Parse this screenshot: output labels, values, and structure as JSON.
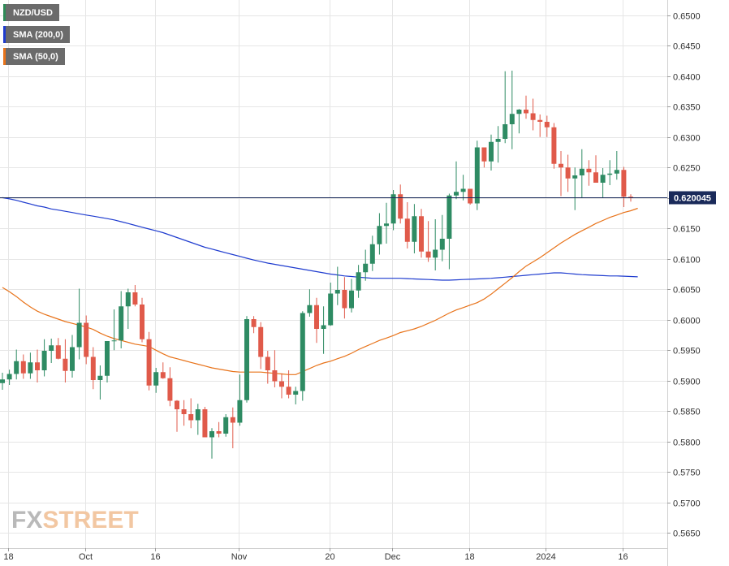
{
  "chart_data": {
    "type": "candlestick",
    "symbol": "NZD/USD",
    "legend": [
      {
        "label": "NZD/USD",
        "color": "#2e8b57"
      },
      {
        "label": "SMA (200,0)",
        "color": "#1f3ccf"
      },
      {
        "label": "SMA (50,0)",
        "color": "#e8731a"
      }
    ],
    "current_price": "0.620045",
    "current_price_value": 0.62005,
    "y_ticks": [
      "0.6500",
      "0.6450",
      "0.6400",
      "0.6350",
      "0.6300",
      "0.6250",
      "0.6200",
      "0.6150",
      "0.6100",
      "0.6050",
      "0.6000",
      "0.5950",
      "0.5900",
      "0.5850",
      "0.5800",
      "0.5750",
      "0.5700",
      "0.5650"
    ],
    "ylim": [
      0.5625,
      0.6525
    ],
    "x_tick_labels": [
      {
        "label": "18",
        "index": 0
      },
      {
        "label": "Oct",
        "index": 11
      },
      {
        "label": "16",
        "index": 21
      },
      {
        "label": "Nov",
        "index": 33
      },
      {
        "label": "20",
        "index": 46
      },
      {
        "label": "Dec",
        "index": 55
      },
      {
        "label": "18",
        "index": 66
      },
      {
        "label": "2024",
        "index": 77
      },
      {
        "label": "16",
        "index": 88
      }
    ],
    "candles": [
      [
        0.5896,
        0.5913,
        0.5885,
        0.5902
      ],
      [
        0.5902,
        0.5918,
        0.5893,
        0.5911
      ],
      [
        0.5911,
        0.5951,
        0.5902,
        0.5932
      ],
      [
        0.5932,
        0.5943,
        0.5903,
        0.5912
      ],
      [
        0.5912,
        0.5946,
        0.5903,
        0.593
      ],
      [
        0.593,
        0.5951,
        0.5897,
        0.5917
      ],
      [
        0.5917,
        0.5968,
        0.5907,
        0.5949
      ],
      [
        0.5949,
        0.5969,
        0.5929,
        0.5958
      ],
      [
        0.5958,
        0.597,
        0.5935,
        0.5936
      ],
      [
        0.5936,
        0.5968,
        0.5897,
        0.5916
      ],
      [
        0.5916,
        0.5975,
        0.5905,
        0.5955
      ],
      [
        0.5955,
        0.6051,
        0.5935,
        0.5995
      ],
      [
        0.5995,
        0.6007,
        0.5927,
        0.5939
      ],
      [
        0.5939,
        0.5955,
        0.5886,
        0.5901
      ],
      [
        0.5901,
        0.5925,
        0.5869,
        0.5908
      ],
      [
        0.5908,
        0.5965,
        0.5897,
        0.5965
      ],
      [
        0.5965,
        0.6017,
        0.595,
        0.5966
      ],
      [
        0.5966,
        0.6047,
        0.5953,
        0.6022
      ],
      [
        0.6022,
        0.6051,
        0.5985,
        0.6045
      ],
      [
        0.6045,
        0.6057,
        0.6022,
        0.6025
      ],
      [
        0.6025,
        0.6036,
        0.5963,
        0.5968
      ],
      [
        0.5968,
        0.598,
        0.5884,
        0.5892
      ],
      [
        0.5892,
        0.5921,
        0.588,
        0.5914
      ],
      [
        0.5914,
        0.593,
        0.5903,
        0.5904
      ],
      [
        0.5904,
        0.5922,
        0.5858,
        0.5867
      ],
      [
        0.5867,
        0.5868,
        0.5816,
        0.5853
      ],
      [
        0.5853,
        0.5868,
        0.5826,
        0.5845
      ],
      [
        0.5845,
        0.5871,
        0.5822,
        0.5835
      ],
      [
        0.5835,
        0.5862,
        0.5811,
        0.5853
      ],
      [
        0.5853,
        0.5857,
        0.5807,
        0.5807
      ],
      [
        0.5807,
        0.5822,
        0.5772,
        0.5817
      ],
      [
        0.5817,
        0.5832,
        0.5807,
        0.5813
      ],
      [
        0.5813,
        0.5845,
        0.5808,
        0.584
      ],
      [
        0.584,
        0.5856,
        0.5789,
        0.5831
      ],
      [
        0.5831,
        0.591,
        0.5826,
        0.5868
      ],
      [
        0.5868,
        0.6006,
        0.5864,
        0.6001
      ],
      [
        0.6001,
        0.6006,
        0.5978,
        0.5988
      ],
      [
        0.5988,
        0.5996,
        0.5919,
        0.5939
      ],
      [
        0.5939,
        0.5949,
        0.5895,
        0.5917
      ],
      [
        0.5917,
        0.595,
        0.5889,
        0.5899
      ],
      [
        0.5899,
        0.5912,
        0.5871,
        0.589
      ],
      [
        0.589,
        0.5917,
        0.5871,
        0.5877
      ],
      [
        0.5877,
        0.589,
        0.5861,
        0.5883
      ],
      [
        0.5883,
        0.6014,
        0.5867,
        0.6011
      ],
      [
        0.6011,
        0.605,
        0.6005,
        0.6024
      ],
      [
        0.6024,
        0.6036,
        0.5962,
        0.5985
      ],
      [
        0.5985,
        0.6022,
        0.5944,
        0.5991
      ],
      [
        0.5991,
        0.6061,
        0.599,
        0.6043
      ],
      [
        0.6043,
        0.6087,
        0.6024,
        0.6049
      ],
      [
        0.6049,
        0.607,
        0.6002,
        0.6019
      ],
      [
        0.6019,
        0.6067,
        0.6012,
        0.6048
      ],
      [
        0.6048,
        0.609,
        0.6036,
        0.6078
      ],
      [
        0.6078,
        0.6115,
        0.6064,
        0.6092
      ],
      [
        0.6092,
        0.6138,
        0.608,
        0.6124
      ],
      [
        0.6124,
        0.6175,
        0.6107,
        0.6154
      ],
      [
        0.6154,
        0.6192,
        0.6125,
        0.6158
      ],
      [
        0.6158,
        0.6213,
        0.6147,
        0.6206
      ],
      [
        0.6206,
        0.6222,
        0.6158,
        0.6166
      ],
      [
        0.6166,
        0.6193,
        0.6117,
        0.6128
      ],
      [
        0.6128,
        0.619,
        0.6109,
        0.617
      ],
      [
        0.617,
        0.6182,
        0.6102,
        0.6112
      ],
      [
        0.6112,
        0.6162,
        0.6095,
        0.6102
      ],
      [
        0.6102,
        0.6165,
        0.6081,
        0.6115
      ],
      [
        0.6115,
        0.6172,
        0.6096,
        0.6133
      ],
      [
        0.6133,
        0.6207,
        0.6083,
        0.6204
      ],
      [
        0.6204,
        0.626,
        0.6198,
        0.621
      ],
      [
        0.621,
        0.6238,
        0.6196,
        0.6215
      ],
      [
        0.6215,
        0.6215,
        0.6189,
        0.6191
      ],
      [
        0.6191,
        0.6294,
        0.618,
        0.6283
      ],
      [
        0.6283,
        0.6282,
        0.625,
        0.626
      ],
      [
        0.626,
        0.6304,
        0.6245,
        0.6292
      ],
      [
        0.6292,
        0.6318,
        0.6258,
        0.6297
      ],
      [
        0.6297,
        0.6408,
        0.629,
        0.6321
      ],
      [
        0.6321,
        0.6409,
        0.628,
        0.6338
      ],
      [
        0.6338,
        0.6346,
        0.6306,
        0.6345
      ],
      [
        0.6345,
        0.6368,
        0.633,
        0.6339
      ],
      [
        0.6339,
        0.6363,
        0.6311,
        0.6328
      ],
      [
        0.6328,
        0.6337,
        0.63,
        0.6325
      ],
      [
        0.6325,
        0.6335,
        0.63,
        0.6316
      ],
      [
        0.6316,
        0.6323,
        0.6248,
        0.6256
      ],
      [
        0.6256,
        0.6277,
        0.6203,
        0.625
      ],
      [
        0.625,
        0.6271,
        0.621,
        0.6232
      ],
      [
        0.6232,
        0.625,
        0.618,
        0.6237
      ],
      [
        0.6237,
        0.628,
        0.62,
        0.6248
      ],
      [
        0.6248,
        0.6262,
        0.622,
        0.6242
      ],
      [
        0.6242,
        0.627,
        0.6225,
        0.6225
      ],
      [
        0.6225,
        0.6249,
        0.62,
        0.6238
      ],
      [
        0.6238,
        0.6262,
        0.6221,
        0.624
      ],
      [
        0.624,
        0.6277,
        0.623,
        0.6246
      ],
      [
        0.6246,
        0.6251,
        0.6185,
        0.6202
      ],
      [
        0.6202,
        0.6206,
        0.6194,
        0.62
      ]
    ],
    "sma200": [
      0.62005,
      0.61985,
      0.6196,
      0.6193,
      0.619,
      0.6187,
      0.6185,
      0.6182,
      0.618,
      0.6178,
      0.6176,
      0.6174,
      0.6172,
      0.617,
      0.6168,
      0.6166,
      0.6164,
      0.6161,
      0.6158,
      0.6155,
      0.6152,
      0.6149,
      0.6146,
      0.6143,
      0.6139,
      0.6135,
      0.6131,
      0.6127,
      0.6123,
      0.6119,
      0.6116,
      0.6113,
      0.611,
      0.6107,
      0.6104,
      0.6101,
      0.6098,
      0.60955,
      0.6093,
      0.6091,
      0.6089,
      0.6087,
      0.6085,
      0.6083,
      0.6081,
      0.6079,
      0.6077,
      0.6075,
      0.60735,
      0.6072,
      0.6071,
      0.607,
      0.6069,
      0.6068,
      0.6068,
      0.6068,
      0.6068,
      0.6068,
      0.60675,
      0.6067,
      0.60665,
      0.6066,
      0.60655,
      0.6065,
      0.6065,
      0.60655,
      0.6066,
      0.60665,
      0.6067,
      0.60675,
      0.6068,
      0.6069,
      0.607,
      0.6071,
      0.6072,
      0.6073,
      0.6074,
      0.6075,
      0.6076,
      0.6077,
      0.6077,
      0.6076,
      0.6075,
      0.6074,
      0.60735,
      0.6073,
      0.60725,
      0.6072,
      0.6072,
      0.60715,
      0.6071,
      0.60705
    ],
    "sma50": [
      0.6053,
      0.6046,
      0.6038,
      0.6029,
      0.6021,
      0.6014,
      0.6009,
      0.6005,
      0.6001,
      0.5997,
      0.5994,
      0.5991,
      0.5988,
      0.5984,
      0.5978,
      0.5973,
      0.5969,
      0.5966,
      0.5963,
      0.596,
      0.5958,
      0.5956,
      0.595,
      0.5944,
      0.5939,
      0.5936,
      0.5933,
      0.593,
      0.5927,
      0.5924,
      0.5921,
      0.5919,
      0.5917,
      0.5915,
      0.5914,
      0.5914,
      0.5914,
      0.5914,
      0.5913,
      0.5912,
      0.5911,
      0.591,
      0.591,
      0.5915,
      0.592,
      0.5925,
      0.5929,
      0.5932,
      0.5936,
      0.594,
      0.5945,
      0.5951,
      0.5956,
      0.5961,
      0.5966,
      0.597,
      0.5974,
      0.5979,
      0.5982,
      0.5985,
      0.5989,
      0.5994,
      0.5999,
      0.6005,
      0.6011,
      0.6016,
      0.602,
      0.6024,
      0.6028,
      0.6034,
      0.6042,
      0.6051,
      0.606,
      0.6069,
      0.6079,
      0.6088,
      0.6095,
      0.6102,
      0.611,
      0.6118,
      0.6126,
      0.6133,
      0.614,
      0.6146,
      0.6152,
      0.6158,
      0.6163,
      0.6168,
      0.6172,
      0.6176,
      0.6179,
      0.6183
    ],
    "colors": {
      "up": "#2e8b63",
      "down": "#e05a4a",
      "sma200": "#1f3ccf",
      "sma50": "#e8731a",
      "grid": "#e6e6e6",
      "price_line": "#1a2a5a",
      "price_label_bg": "#1a2a5a"
    }
  },
  "watermark": {
    "part1": "FX",
    "part2": "STREET"
  }
}
